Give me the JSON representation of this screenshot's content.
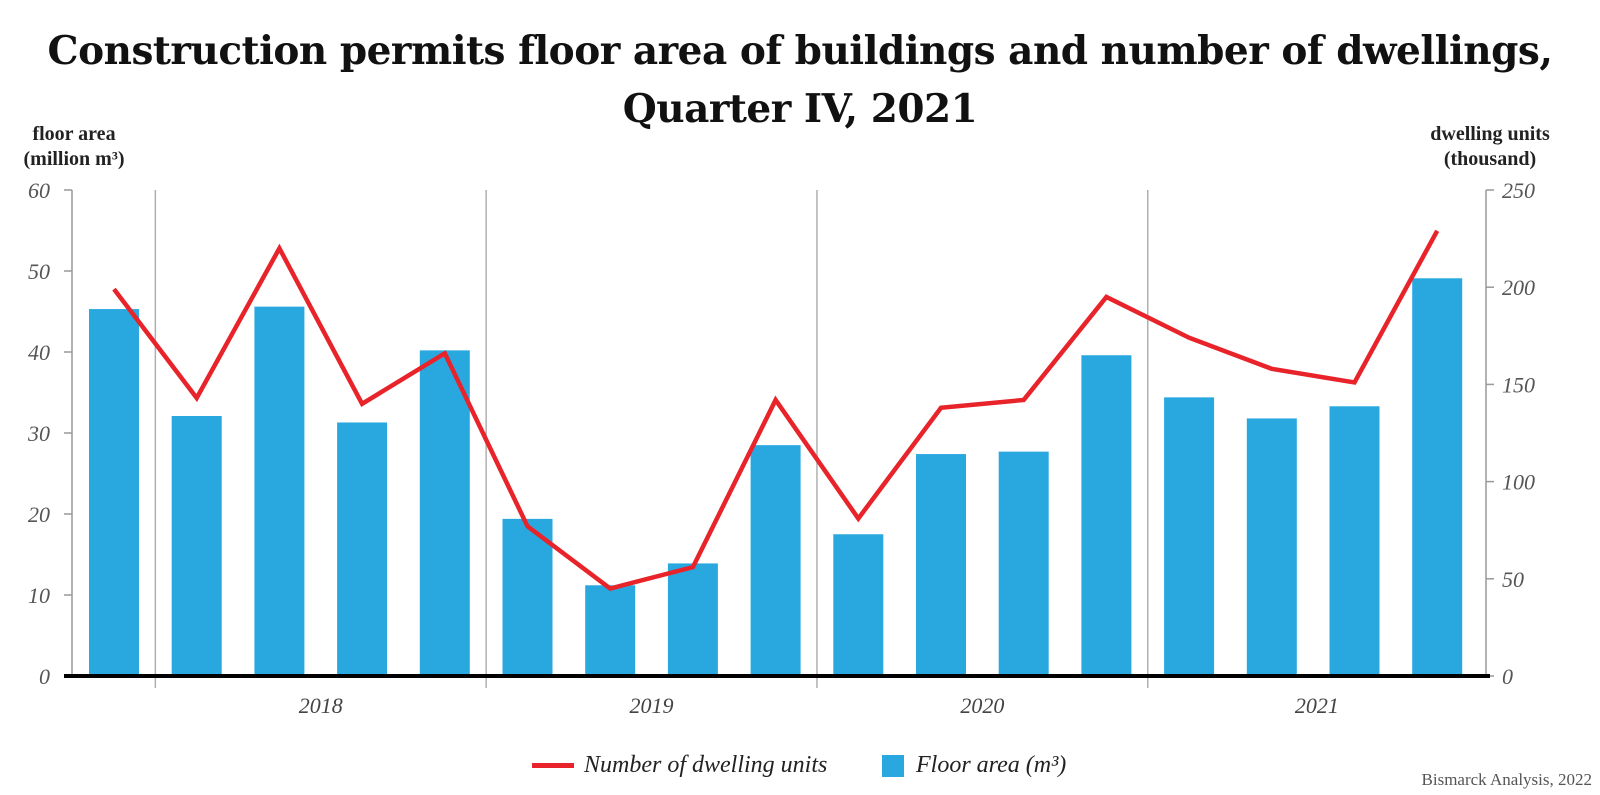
{
  "chart_data": {
    "type": "bar",
    "title_lines": [
      "Construction permits floor area of buildings and number of dwellings,",
      "Quarter IV, 2021"
    ],
    "ylabel_left_lines": [
      "floor area",
      "(million m³)"
    ],
    "ylabel_right_lines": [
      "dwelling units",
      "(thousand)"
    ],
    "ylim_left": [
      0,
      60
    ],
    "ylim_right": [
      0,
      250
    ],
    "left_ticks": [
      "0",
      "10",
      "20",
      "30",
      "40",
      "50",
      "60"
    ],
    "right_ticks": [
      "0",
      "50",
      "100",
      "150",
      "200",
      "250"
    ],
    "years": [
      "2018",
      "2019",
      "2020",
      "2021"
    ],
    "quarters_per_year": [
      5,
      4,
      4,
      4
    ],
    "series": [
      {
        "name": "Floor area (m³)",
        "type": "bar",
        "axis": "left",
        "color": "#29a8e0",
        "values": [
          45.3,
          32.1,
          45.6,
          31.3,
          40.2,
          19.4,
          11.2,
          13.9,
          28.5,
          17.5,
          27.4,
          27.7,
          39.6,
          34.4,
          31.8,
          33.3,
          49.1
        ]
      },
      {
        "name": "Number of dwelling units",
        "type": "line",
        "axis": "right",
        "color": "#e8232a",
        "values": [
          199,
          143,
          220,
          140,
          166,
          77,
          45,
          56,
          142,
          81,
          138,
          142,
          195,
          174,
          158,
          151,
          229
        ]
      }
    ],
    "grid": false,
    "legend_position": "bottom-center"
  },
  "legend": {
    "line_label": "Number of dwelling units",
    "bar_label": "Floor area (m³)"
  },
  "source": "Bismarck Analysis, 2022"
}
